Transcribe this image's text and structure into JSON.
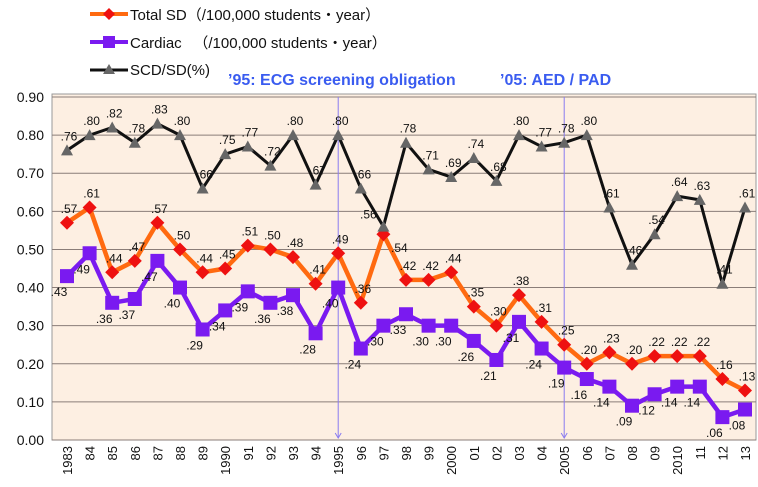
{
  "chart_data": {
    "type": "line",
    "x": [
      "1983",
      "84",
      "85",
      "86",
      "87",
      "88",
      "89",
      "1990",
      "91",
      "92",
      "93",
      "94",
      "1995",
      "96",
      "97",
      "98",
      "99",
      "2000",
      "01",
      "02",
      "03",
      "04",
      "2005",
      "06",
      "07",
      "08",
      "09",
      "2010",
      "11",
      "12",
      "13"
    ],
    "series": [
      {
        "name": "Total SD（/100,000 students・year）",
        "color": "#ff6a10",
        "marker": "diamond",
        "marker_color": "#ee1111",
        "values": [
          0.57,
          0.61,
          0.44,
          0.47,
          0.57,
          0.5,
          0.44,
          0.45,
          0.51,
          0.5,
          0.48,
          0.41,
          0.49,
          0.36,
          0.54,
          0.42,
          0.42,
          0.44,
          0.35,
          0.3,
          0.38,
          0.31,
          0.25,
          0.2,
          0.23,
          0.2,
          0.22,
          0.22,
          0.22,
          0.16,
          0.13
        ],
        "labels": [
          ".57",
          ".61",
          ".44",
          ".47",
          ".57",
          ".50",
          ".44",
          ".45",
          ".51",
          ".50",
          ".48",
          ".41",
          ".49",
          ".36",
          ".54",
          ".42",
          ".42",
          ".44",
          ".35",
          ".30",
          ".38",
          ".31",
          ".25",
          ".20",
          ".23",
          ".20",
          ".22",
          ".22",
          ".22",
          ".16",
          ".13"
        ]
      },
      {
        "name": "Cardiac 　（/100,000 students・year）",
        "color": "#7a1af0",
        "marker": "square",
        "marker_color": "#7a1af0",
        "values": [
          0.43,
          0.49,
          0.36,
          0.37,
          0.47,
          0.4,
          0.29,
          0.34,
          0.39,
          0.36,
          0.38,
          0.28,
          0.4,
          0.24,
          0.3,
          0.33,
          0.3,
          0.3,
          0.26,
          0.21,
          0.31,
          0.24,
          0.19,
          0.16,
          0.14,
          0.09,
          0.12,
          0.14,
          0.14,
          0.06,
          0.08
        ],
        "labels": [
          ".43",
          ".49",
          ".36",
          ".37",
          ".47",
          ".40",
          ".29",
          ".34",
          ".39",
          ".36",
          ".38",
          ".28",
          ".40",
          ".24",
          ".30",
          ".33",
          ".30",
          ".30",
          ".26",
          ".21",
          ".31",
          ".24",
          ".19",
          ".16",
          ".14",
          ".09",
          ".12",
          ".14",
          ".14",
          ".06",
          ".08"
        ]
      },
      {
        "name": "SCD/SD(%)",
        "color": "#111111",
        "marker": "triangle",
        "marker_color": "#666666",
        "values": [
          0.76,
          0.8,
          0.82,
          0.78,
          0.83,
          0.8,
          0.66,
          0.75,
          0.77,
          0.72,
          0.8,
          0.67,
          0.8,
          0.66,
          0.56,
          0.78,
          0.71,
          0.69,
          0.74,
          0.68,
          0.8,
          0.77,
          0.78,
          0.8,
          0.61,
          0.46,
          0.54,
          0.64,
          0.63,
          0.41,
          0.61
        ],
        "labels": [
          ".76",
          ".80",
          ".82",
          ".78",
          ".83",
          ".80",
          ".66",
          ".75",
          ".77",
          ".72",
          ".80",
          ".67",
          ".80",
          ".66",
          ".56",
          ".78",
          ".71",
          ".69",
          ".74",
          ".68",
          ".80",
          ".77",
          ".78",
          ".80",
          ".61",
          ".46",
          ".54",
          ".64",
          ".63",
          ".41",
          ".61"
        ]
      }
    ],
    "yticks": [
      "0.00",
      "0.10",
      "0.20",
      "0.30",
      "0.40",
      "0.50",
      "0.60",
      "0.70",
      "0.80",
      "0.90"
    ],
    "ylim": [
      0,
      0.9
    ],
    "grid": true,
    "legend": "top-left",
    "background": "#fdefe2",
    "annotations": [
      {
        "text": "’95: ECG screening obligation",
        "x": "1995"
      },
      {
        "text": "’05: AED / PAD",
        "x": "2005"
      }
    ]
  }
}
